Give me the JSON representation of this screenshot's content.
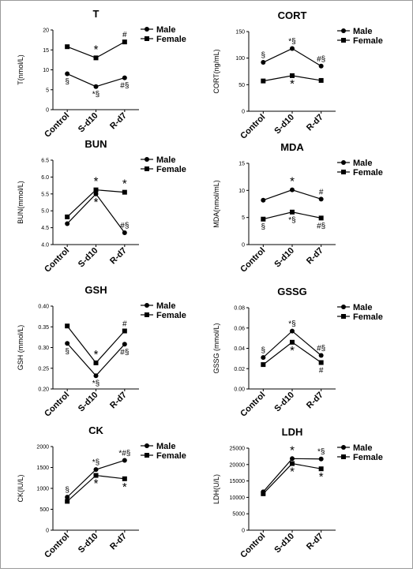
{
  "chart_data": [
    {
      "type": "line",
      "title": "T",
      "ylabel": "T(nmol/L)",
      "categories": [
        "Control",
        "S-d10",
        "R-d7"
      ],
      "ylim": [
        0,
        20
      ],
      "yticks": [
        "0",
        "5",
        "10",
        "15",
        "20"
      ],
      "series": [
        {
          "name": "Male",
          "marker": "circle",
          "values": [
            9.0,
            5.8,
            8.0
          ],
          "annotations": [
            {
              "text": "§",
              "pos": "below"
            },
            {
              "text": "*§",
              "pos": "below"
            },
            {
              "text": "#§",
              "pos": "below"
            }
          ]
        },
        {
          "name": "Female",
          "marker": "square",
          "values": [
            15.8,
            13.0,
            17.0
          ],
          "annotations": [
            {
              "text": "",
              "pos": "above"
            },
            {
              "text": "*",
              "pos": "above"
            },
            {
              "text": "#",
              "pos": "above"
            }
          ]
        }
      ],
      "legend": "top-right"
    },
    {
      "type": "line",
      "title": "CORT",
      "ylabel": "CORT(ng/mL)",
      "categories": [
        "Control",
        "S-d10",
        "R-d7"
      ],
      "ylim": [
        0,
        150
      ],
      "yticks": [
        "0",
        "50",
        "100",
        "150"
      ],
      "series": [
        {
          "name": "Male",
          "marker": "circle",
          "values": [
            92,
            118,
            85
          ],
          "annotations": [
            {
              "text": "§",
              "pos": "above"
            },
            {
              "text": "*§",
              "pos": "above"
            },
            {
              "text": "#§",
              "pos": "above"
            }
          ]
        },
        {
          "name": "Female",
          "marker": "square",
          "values": [
            57,
            67,
            58
          ],
          "annotations": [
            {
              "text": "",
              "pos": "below"
            },
            {
              "text": "*",
              "pos": "below"
            },
            {
              "text": "",
              "pos": "below"
            }
          ]
        }
      ],
      "legend": "top-right"
    },
    {
      "type": "line",
      "title": "BUN",
      "ylabel": "BUN(mmol/L)",
      "categories": [
        "Control",
        "S-d10",
        "R-d7"
      ],
      "ylim": [
        4.0,
        6.5
      ],
      "yticks": [
        "4.0",
        "4.5",
        "5.0",
        "5.5",
        "6.0",
        "6.5"
      ],
      "series": [
        {
          "name": "Male",
          "marker": "circle",
          "values": [
            4.62,
            5.5,
            4.35
          ],
          "annotations": [
            {
              "text": "",
              "pos": "below"
            },
            {
              "text": "*",
              "pos": "below"
            },
            {
              "text": "#§",
              "pos": "above"
            }
          ]
        },
        {
          "name": "Female",
          "marker": "square",
          "values": [
            4.82,
            5.62,
            5.55
          ],
          "annotations": [
            {
              "text": "",
              "pos": "above"
            },
            {
              "text": "*",
              "pos": "above"
            },
            {
              "text": "*",
              "pos": "above"
            }
          ]
        }
      ],
      "legend": "top-right"
    },
    {
      "type": "line",
      "title": "MDA",
      "ylabel": "MDA(nmol/mL)",
      "categories": [
        "Control",
        "S-d10",
        "R-d7"
      ],
      "ylim": [
        0,
        15
      ],
      "yticks": [
        "0",
        "5",
        "10",
        "15"
      ],
      "series": [
        {
          "name": "Male",
          "marker": "circle",
          "values": [
            8.2,
            10.1,
            8.4
          ],
          "annotations": [
            {
              "text": "",
              "pos": "above"
            },
            {
              "text": "*",
              "pos": "above"
            },
            {
              "text": "#",
              "pos": "above"
            }
          ]
        },
        {
          "name": "Female",
          "marker": "square",
          "values": [
            4.7,
            6.0,
            4.9
          ],
          "annotations": [
            {
              "text": "§",
              "pos": "below"
            },
            {
              "text": "*§",
              "pos": "below"
            },
            {
              "text": "#§",
              "pos": "below"
            }
          ]
        }
      ],
      "legend": "top-right"
    },
    {
      "type": "line",
      "title": "GSH",
      "ylabel": "GSH (mmol/L)",
      "categories": [
        "Control",
        "S-d10",
        "R-d7"
      ],
      "ylim": [
        0.2,
        0.4
      ],
      "yticks": [
        "0.20",
        "0.25",
        "0.30",
        "0.35",
        "0.40"
      ],
      "series": [
        {
          "name": "Male",
          "marker": "circle",
          "values": [
            0.31,
            0.232,
            0.308
          ],
          "annotations": [
            {
              "text": "§",
              "pos": "below"
            },
            {
              "text": "*§",
              "pos": "below"
            },
            {
              "text": "#§",
              "pos": "below"
            }
          ]
        },
        {
          "name": "Female",
          "marker": "square",
          "values": [
            0.352,
            0.263,
            0.34
          ],
          "annotations": [
            {
              "text": "",
              "pos": "above"
            },
            {
              "text": "*",
              "pos": "above"
            },
            {
              "text": "#",
              "pos": "above"
            }
          ]
        }
      ],
      "legend": "top-right"
    },
    {
      "type": "line",
      "title": "GSSG",
      "ylabel": "GSSG (mmol/L)",
      "categories": [
        "Control",
        "S-d10",
        "R-d7"
      ],
      "ylim": [
        0,
        0.08
      ],
      "yticks": [
        "0.00",
        "0.02",
        "0.04",
        "0.06",
        "0.08"
      ],
      "series": [
        {
          "name": "Male",
          "marker": "circle",
          "values": [
            0.031,
            0.057,
            0.033
          ],
          "annotations": [
            {
              "text": "§",
              "pos": "above"
            },
            {
              "text": "*§",
              "pos": "above"
            },
            {
              "text": "#§",
              "pos": "above"
            }
          ]
        },
        {
          "name": "Female",
          "marker": "square",
          "values": [
            0.024,
            0.046,
            0.026
          ],
          "annotations": [
            {
              "text": "",
              "pos": "below"
            },
            {
              "text": "*",
              "pos": "below"
            },
            {
              "text": "#",
              "pos": "below"
            }
          ]
        }
      ],
      "legend": "top-right"
    },
    {
      "type": "line",
      "title": "CK",
      "ylabel": "CK(IU/L)",
      "categories": [
        "Control",
        "S-d10",
        "R-d7"
      ],
      "ylim": [
        0,
        2000
      ],
      "yticks": [
        "0",
        "500",
        "1000",
        "1500",
        "2000"
      ],
      "series": [
        {
          "name": "Male",
          "marker": "circle",
          "values": [
            790,
            1450,
            1670
          ],
          "annotations": [
            {
              "text": "§",
              "pos": "above"
            },
            {
              "text": "*§",
              "pos": "above"
            },
            {
              "text": "*#§",
              "pos": "above"
            }
          ]
        },
        {
          "name": "Female",
          "marker": "square",
          "values": [
            690,
            1310,
            1230
          ],
          "annotations": [
            {
              "text": "",
              "pos": "below"
            },
            {
              "text": "*",
              "pos": "below"
            },
            {
              "text": "*",
              "pos": "below"
            }
          ]
        }
      ],
      "legend": "top-right"
    },
    {
      "type": "line",
      "title": "LDH",
      "ylabel": "LDH(U/L)",
      "categories": [
        "Control",
        "S-d10",
        "R-d7"
      ],
      "ylim": [
        0,
        25000
      ],
      "yticks": [
        "0",
        "5000",
        "10000",
        "15000",
        "20000",
        "25000"
      ],
      "series": [
        {
          "name": "Male",
          "marker": "circle",
          "values": [
            11700,
            21800,
            21700
          ],
          "annotations": [
            {
              "text": "",
              "pos": "above"
            },
            {
              "text": "*",
              "pos": "above"
            },
            {
              "text": "*§",
              "pos": "above"
            }
          ]
        },
        {
          "name": "Female",
          "marker": "square",
          "values": [
            11100,
            20300,
            18700
          ],
          "annotations": [
            {
              "text": "",
              "pos": "below"
            },
            {
              "text": "*",
              "pos": "below"
            },
            {
              "text": "*",
              "pos": "below"
            }
          ]
        }
      ],
      "legend": "top-right"
    }
  ]
}
